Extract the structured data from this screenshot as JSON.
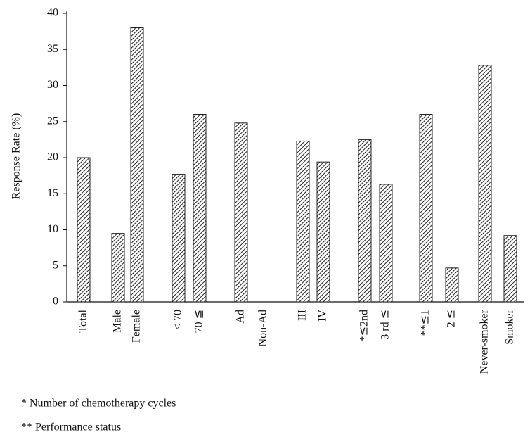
{
  "chart_data": {
    "type": "bar",
    "y_label": "Response Rate (%)",
    "categories": [
      "Total",
      "Male",
      "Female",
      "< 70",
      "70 ≦",
      "Ad",
      "Non-Ad",
      "III",
      "IV",
      "*≦2nd",
      "3 rd ≦",
      "**≦1",
      "2 ≦",
      "Never-smoker",
      "Smoker"
    ],
    "values": [
      20,
      9.5,
      38,
      17.7,
      26,
      24.8,
      0,
      22.3,
      19.4,
      22.5,
      16.3,
      26,
      4.7,
      32.8,
      9.2
    ],
    "color": "#222222",
    "ylim": [
      0,
      40
    ],
    "yticks": [
      0,
      5,
      10,
      15,
      20,
      25,
      30,
      35,
      40
    ],
    "footnotes": [
      "*  Number of chemotherapy cycles",
      "** Performance status"
    ]
  }
}
